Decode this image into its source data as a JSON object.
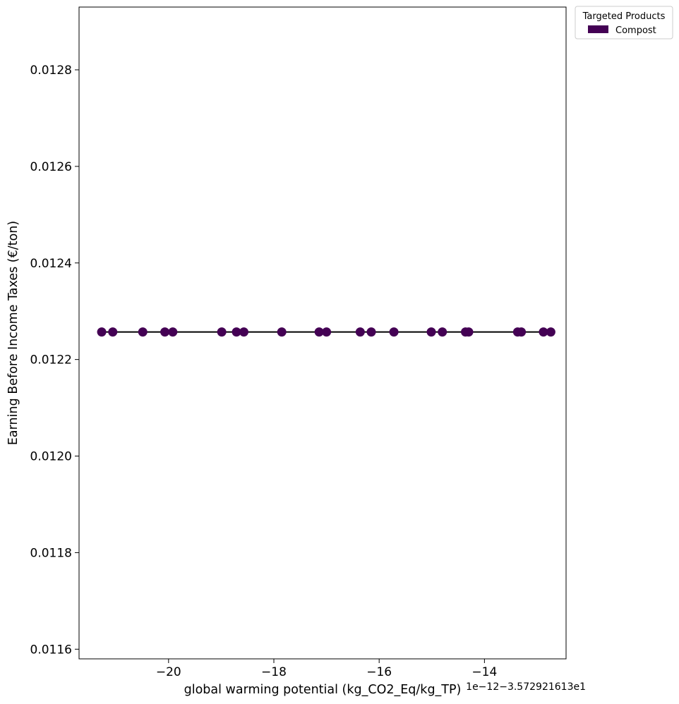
{
  "chart_data": {
    "type": "scatter",
    "xlabel": "global warming potential (kg_CO2_Eq/kg_TP)",
    "ylabel": "Earning Before Income Taxes (€/ton)",
    "x_offset_label": "1e−12−3.572921613e1",
    "xlim": [
      -21.7,
      -12.45
    ],
    "ylim": [
      0.01158,
      0.01293
    ],
    "x_ticks": [
      -20,
      -18,
      -16,
      -14
    ],
    "x_tick_labels": [
      "−20",
      "−18",
      "−16",
      "−14"
    ],
    "y_ticks": [
      0.0116,
      0.0118,
      0.012,
      0.0122,
      0.0124,
      0.0126,
      0.0128
    ],
    "y_tick_labels": [
      "0.0116",
      "0.0118",
      "0.0120",
      "0.0122",
      "0.0124",
      "0.0126",
      "0.0128"
    ],
    "grid": false,
    "legend": {
      "title": "Targeted Products",
      "placement": "outside-top-right",
      "entries": [
        {
          "label": "Compost",
          "color": "#440154"
        }
      ]
    },
    "series": [
      {
        "name": "Compost",
        "color": "#440154",
        "line_color": "#000000",
        "x": [
          -21.27,
          -21.06,
          -20.49,
          -20.07,
          -19.92,
          -18.99,
          -18.71,
          -18.57,
          -17.85,
          -17.14,
          -17.0,
          -16.36,
          -16.15,
          -15.72,
          -15.01,
          -14.8,
          -14.36,
          -14.3,
          -13.37,
          -13.3,
          -12.88,
          -12.74
        ],
        "y": [
          0.012257,
          0.012257,
          0.012257,
          0.012257,
          0.012257,
          0.012257,
          0.012257,
          0.012257,
          0.012257,
          0.012257,
          0.012257,
          0.012257,
          0.012257,
          0.012257,
          0.012257,
          0.012257,
          0.012257,
          0.012257,
          0.012257,
          0.012257,
          0.012257,
          0.012257
        ]
      }
    ]
  }
}
